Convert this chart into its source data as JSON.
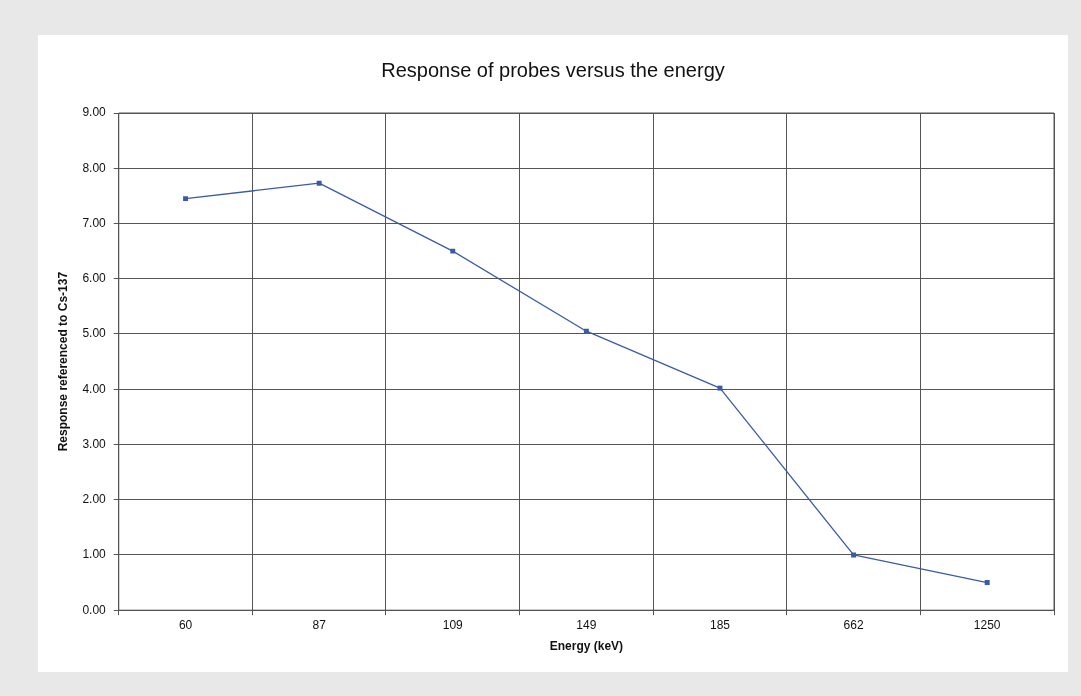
{
  "chart_data": {
    "type": "line",
    "title": "Response of probes versus the energy",
    "xlabel": "Energy (keV)",
    "ylabel": "Response referenced to Cs-137",
    "categories": [
      "60",
      "87",
      "109",
      "149",
      "185",
      "662",
      "1250"
    ],
    "series": [
      {
        "color": "#3a5ba8",
        "values": [
          7.45,
          7.73,
          6.5,
          5.05,
          4.02,
          1.0,
          0.5
        ]
      }
    ],
    "ylim": [
      0,
      9
    ],
    "yticks": [
      {
        "value": 0,
        "label": "0.00"
      },
      {
        "value": 1,
        "label": "1.00"
      },
      {
        "value": 2,
        "label": "2.00"
      },
      {
        "value": 3,
        "label": "3.00"
      },
      {
        "value": 4,
        "label": "4.00"
      },
      {
        "value": 5,
        "label": "5.00"
      },
      {
        "value": 6,
        "label": "6.00"
      },
      {
        "value": 7,
        "label": "7.00"
      },
      {
        "value": 8,
        "label": "8.00"
      },
      {
        "value": 9,
        "label": "9.00"
      }
    ],
    "grid": true,
    "legend": false,
    "marker": "square",
    "line_style": "solid"
  }
}
